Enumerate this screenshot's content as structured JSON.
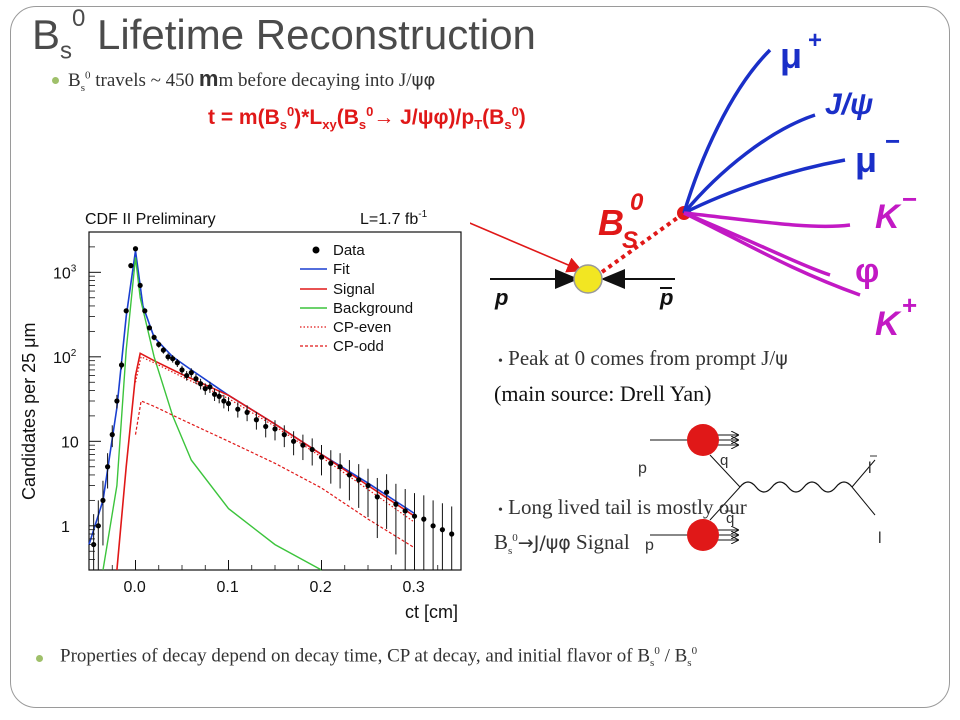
{
  "slide": {
    "title_main": "B",
    "title_sub": "s",
    "title_sup": "0",
    "title_rest": " Lifetime Reconstruction"
  },
  "bullet1": {
    "b": "B",
    "sub": "s",
    "sup": "0",
    "text": " travels ~ 450 ",
    "mu": "m",
    "text2": "m before decaying into  J/",
    "psi_phi": "ψφ"
  },
  "formula": {
    "t": "t = m(B",
    "s1": "s",
    "z1": "0",
    "mid": ")*L",
    "xy": "xy",
    "b2": "(B",
    "s2": "s",
    "z2": "0",
    "arrow": "→ J/ψφ)/p",
    "T": "T",
    "b3": "(B",
    "s3": "s",
    "z3": "0",
    "end": ")"
  },
  "diagram_decay": {
    "mu_plus": "μ",
    "mu_plus_sign": "+",
    "jpsi": "J/ψ",
    "mu_minus": "μ",
    "mu_minus_sign": "−",
    "bs": "B",
    "bs_sub": "S",
    "bs_sup": "0",
    "k_minus": "K",
    "k_minus_sign": "−",
    "phi": "φ",
    "k_plus": "K",
    "k_plus_sign": "+",
    "p": "p",
    "pbar": "p"
  },
  "bullet2": {
    "line1": "Peak at 0 comes from prompt J/",
    "psi": "ψ",
    "line2": "(main source: Drell Yan)"
  },
  "bullet3": {
    "line1": "Long lived tail is mostly our",
    "b": "B",
    "sub": "s",
    "sup": "0",
    "arrow": "→J/ψφ",
    "line2_end": " Signal"
  },
  "feynman": {
    "p": "p",
    "p2": "p",
    "q": "q",
    "qbar": "q",
    "lbar": "l",
    "l": "l"
  },
  "bullet4": {
    "text": "Properties of decay depend on decay time, CP at decay, and initial flavor of B",
    "sub": "s",
    "sup": "0",
    "sep": "  /  B",
    "sub2": "s",
    "sup2": "0"
  },
  "chart_data": {
    "type": "line",
    "title": "CDF II Preliminary",
    "lumi": "L=1.7 fb",
    "lumi_sup": "-1",
    "xlabel": "ct [cm]",
    "ylabel": "Candidates per 25 μm",
    "xlim": [
      -0.05,
      0.35
    ],
    "ylim_log": [
      0.3,
      3000
    ],
    "log_y": true,
    "x_ticks": [
      "0.0",
      "0.1",
      "0.2",
      "0.3"
    ],
    "x_tick_values": [
      0.0,
      0.1,
      0.2,
      0.3
    ],
    "y_ticks": [
      "1",
      "10",
      "10",
      "10"
    ],
    "y_tick_exp": [
      "",
      "",
      "2",
      "3"
    ],
    "y_tick_values": [
      1,
      10,
      100,
      1000
    ],
    "legend": [
      "Data",
      "Fit",
      "Signal",
      "Background",
      "CP-even",
      "CP-odd"
    ],
    "colors": {
      "data": "#000000",
      "fit": "#1a3fd0",
      "signal": "#e01818",
      "background": "#3cc43c",
      "cp_even": "#e01818",
      "cp_odd": "#e01818"
    },
    "series": [
      {
        "name": "Fit",
        "x": [
          -0.05,
          -0.035,
          -0.02,
          -0.01,
          0.0,
          0.008,
          0.02,
          0.04,
          0.06,
          0.1,
          0.15,
          0.2,
          0.25,
          0.3
        ],
        "y": [
          0.6,
          2,
          25,
          300,
          1800,
          400,
          170,
          100,
          70,
          35,
          16,
          7,
          3.2,
          1.4
        ]
      },
      {
        "name": "Signal",
        "x": [
          -0.02,
          -0.01,
          0.0,
          0.005,
          0.02,
          0.05,
          0.1,
          0.15,
          0.2,
          0.25,
          0.3
        ],
        "y": [
          0.3,
          5,
          60,
          110,
          90,
          62,
          35,
          16,
          7,
          3,
          1.3
        ]
      },
      {
        "name": "Background",
        "x": [
          -0.035,
          -0.02,
          -0.01,
          0.0,
          0.005,
          0.02,
          0.04,
          0.06,
          0.1,
          0.15,
          0.2
        ],
        "y": [
          0.3,
          3,
          120,
          1500,
          500,
          100,
          20,
          6,
          1.6,
          0.6,
          0.3
        ]
      },
      {
        "name": "CP-even",
        "x": [
          0.0,
          0.006,
          0.02,
          0.05,
          0.1,
          0.15,
          0.2,
          0.25,
          0.3
        ],
        "y": [
          50,
          100,
          85,
          58,
          32,
          15,
          6.5,
          2.7,
          1.1
        ]
      },
      {
        "name": "CP-odd",
        "x": [
          0.0,
          0.006,
          0.02,
          0.05,
          0.1,
          0.15,
          0.2,
          0.25,
          0.3
        ],
        "y": [
          12,
          30,
          26,
          18,
          10,
          5.5,
          2.8,
          1.2,
          0.55
        ]
      }
    ],
    "data_points": {
      "x": [
        -0.045,
        -0.04,
        -0.035,
        -0.03,
        -0.025,
        -0.02,
        -0.015,
        -0.01,
        -0.005,
        0.0,
        0.005,
        0.01,
        0.015,
        0.02,
        0.025,
        0.03,
        0.035,
        0.04,
        0.045,
        0.05,
        0.055,
        0.06,
        0.065,
        0.07,
        0.075,
        0.08,
        0.085,
        0.09,
        0.095,
        0.1,
        0.11,
        0.12,
        0.13,
        0.14,
        0.15,
        0.16,
        0.17,
        0.18,
        0.19,
        0.2,
        0.21,
        0.22,
        0.23,
        0.24,
        0.25,
        0.26,
        0.27,
        0.28,
        0.29,
        0.3,
        0.31,
        0.32,
        0.33,
        0.34
      ],
      "y": [
        0.6,
        1,
        2,
        5,
        12,
        30,
        80,
        350,
        1200,
        1900,
        700,
        350,
        220,
        170,
        140,
        120,
        100,
        95,
        85,
        70,
        60,
        65,
        55,
        48,
        42,
        44,
        36,
        34,
        30,
        28,
        24,
        22,
        18,
        15,
        14,
        12,
        10,
        9,
        8,
        6.5,
        5.5,
        5,
        4,
        3.5,
        3,
        2.2,
        2.5,
        1.8,
        1.5,
        1.3,
        1.2,
        1,
        0.9,
        0.8
      ]
    }
  }
}
